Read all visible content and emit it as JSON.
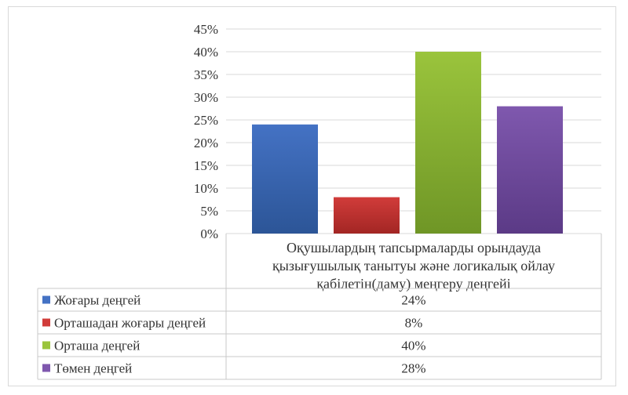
{
  "chart_data": {
    "type": "bar",
    "category_lines": [
      "Оқушылардың  тапсырмаларды орындауда",
      "қызығушылық танытуы және логикалық ойлау",
      "қабілетін(даму)  меңгеру деңгейі"
    ],
    "y_ticks": [
      "0%",
      "5%",
      "10%",
      "15%",
      "20%",
      "25%",
      "30%",
      "35%",
      "40%",
      "45%"
    ],
    "ylim": [
      0,
      45
    ],
    "grid": true,
    "legend": "data-table",
    "series": [
      {
        "name": "Жоғары деңгей",
        "value": 24,
        "label": "24%",
        "color": "#4472c4",
        "color_dark": "#2c5597"
      },
      {
        "name": "Орташадан жоғары деңгей",
        "value": 8,
        "label": "8%",
        "color": "#d13c3a",
        "color_dark": "#a32624"
      },
      {
        "name": "Орташа деңгей",
        "value": 40,
        "label": "40%",
        "color": "#9ac43c",
        "color_dark": "#6f9626"
      },
      {
        "name": "Төмен деңгей",
        "value": 28,
        "label": "28%",
        "color": "#7f58ae",
        "color_dark": "#5b3a86"
      }
    ]
  }
}
